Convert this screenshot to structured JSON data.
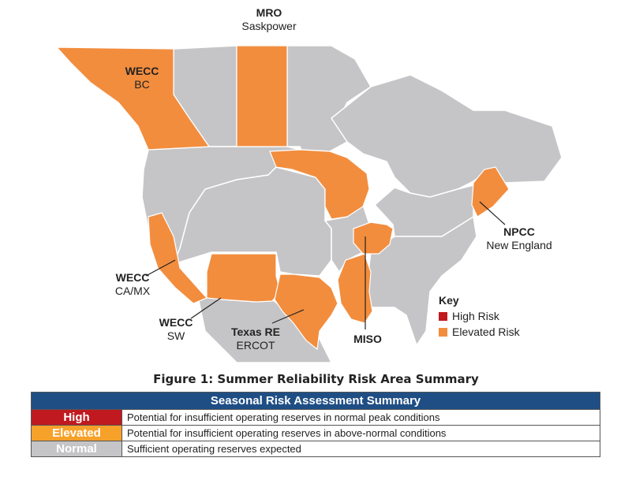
{
  "map": {
    "colors": {
      "background": "#ffffff",
      "neutral": "#c5c5c7",
      "elevated": "#f28d3e",
      "high": "#c0191f",
      "border": "#ffffff"
    },
    "labels": [
      {
        "id": "mro",
        "region": "MRO",
        "sub": "Saskpower"
      },
      {
        "id": "wecc-bc",
        "region": "WECC",
        "sub": "BC"
      },
      {
        "id": "npcc",
        "region": "NPCC",
        "sub": "New England"
      },
      {
        "id": "wecc-camx",
        "region": "WECC",
        "sub": "CA/MX"
      },
      {
        "id": "wecc-sw",
        "region": "WECC",
        "sub": "SW"
      },
      {
        "id": "texas-re",
        "region": "Texas RE",
        "sub": "ERCOT"
      },
      {
        "id": "miso",
        "region": "MISO",
        "sub": ""
      }
    ]
  },
  "key": {
    "title": "Key",
    "items": [
      {
        "label": "High Risk",
        "color": "#c0191f"
      },
      {
        "label": "Elevated Risk",
        "color": "#f28d3e"
      }
    ]
  },
  "caption": "Figure 1: Summer Reliability Risk Area Summary",
  "table": {
    "title": "Seasonal Risk Assessment Summary",
    "rows": [
      {
        "level": "High",
        "color": "#c0191f",
        "description": "Potential for insufficient operating reserves in normal peak conditions"
      },
      {
        "level": "Elevated",
        "color": "#f6a12a",
        "description": "Potential for insufficient operating reserves in above-normal conditions"
      },
      {
        "level": "Normal",
        "color": "#c5c5c7",
        "description": "Sufficient operating reserves expected"
      }
    ]
  }
}
